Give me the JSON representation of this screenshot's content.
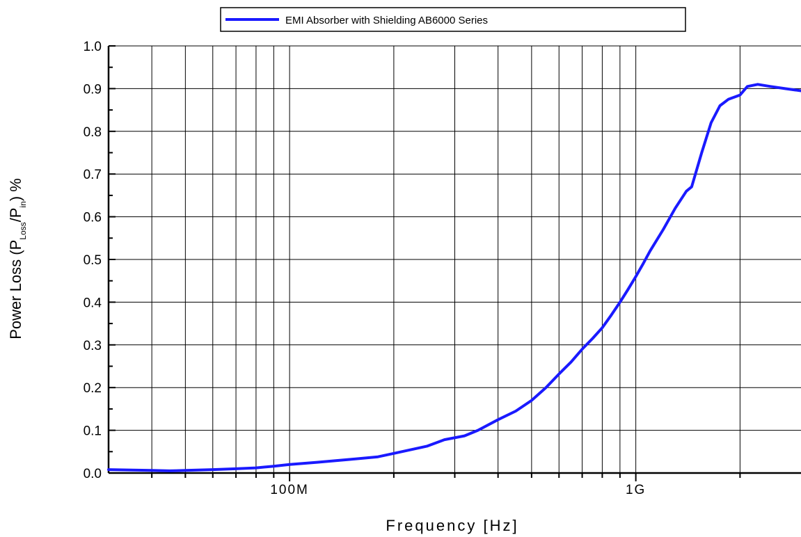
{
  "chart_data": {
    "type": "line",
    "x_scale": "log",
    "xlabel": "Frequency [Hz]",
    "ylabel_parts": {
      "pre": "Power Loss (P",
      "sub1": "Loss",
      "mid": "/P",
      "sub2": "in",
      "post": ") %"
    },
    "xlim": [
      30000000,
      3000000000
    ],
    "ylim": [
      0.0,
      1.0
    ],
    "y_ticks": [
      0.0,
      0.1,
      0.2,
      0.3,
      0.4,
      0.5,
      0.6,
      0.7,
      0.8,
      0.9,
      1.0
    ],
    "y_tick_labels": [
      "0.0",
      "0.1",
      "0.2",
      "0.3",
      "0.4",
      "0.5",
      "0.6",
      "0.7",
      "0.8",
      "0.9",
      "1.0"
    ],
    "x_tick_labels": [
      {
        "value": 100000000,
        "label": "100M"
      },
      {
        "value": 1000000000,
        "label": "1G"
      }
    ],
    "x_grid_values": [
      40000000,
      50000000,
      60000000,
      70000000,
      80000000,
      90000000,
      100000000,
      200000000,
      300000000,
      400000000,
      500000000,
      600000000,
      700000000,
      800000000,
      900000000,
      1000000000,
      2000000000
    ],
    "grid": true,
    "legend_position": "top",
    "series": [
      {
        "name": "EMI Absorber with Shielding AB6000 Series",
        "color": "#1a1aff",
        "x": [
          30000000,
          35000000,
          40000000,
          45000000,
          50000000,
          60000000,
          70000000,
          80000000,
          90000000,
          100000000,
          120000000,
          150000000,
          180000000,
          200000000,
          250000000,
          280000000,
          320000000,
          350000000,
          400000000,
          450000000,
          500000000,
          550000000,
          600000000,
          650000000,
          700000000,
          750000000,
          800000000,
          850000000,
          900000000,
          950000000,
          1000000000,
          1050000000,
          1100000000,
          1200000000,
          1300000000,
          1400000000,
          1450000000,
          1550000000,
          1650000000,
          1750000000,
          1850000000,
          2000000000,
          2100000000,
          2250000000,
          2450000000,
          2700000000,
          3000000000
        ],
        "y": [
          0.008,
          0.007,
          0.006,
          0.005,
          0.006,
          0.008,
          0.01,
          0.012,
          0.016,
          0.02,
          0.025,
          0.032,
          0.038,
          0.046,
          0.063,
          0.078,
          0.087,
          0.1,
          0.125,
          0.145,
          0.17,
          0.2,
          0.232,
          0.26,
          0.29,
          0.315,
          0.34,
          0.37,
          0.4,
          0.43,
          0.46,
          0.49,
          0.52,
          0.57,
          0.62,
          0.66,
          0.67,
          0.75,
          0.82,
          0.86,
          0.875,
          0.885,
          0.905,
          0.91,
          0.905,
          0.9,
          0.895
        ]
      }
    ]
  }
}
